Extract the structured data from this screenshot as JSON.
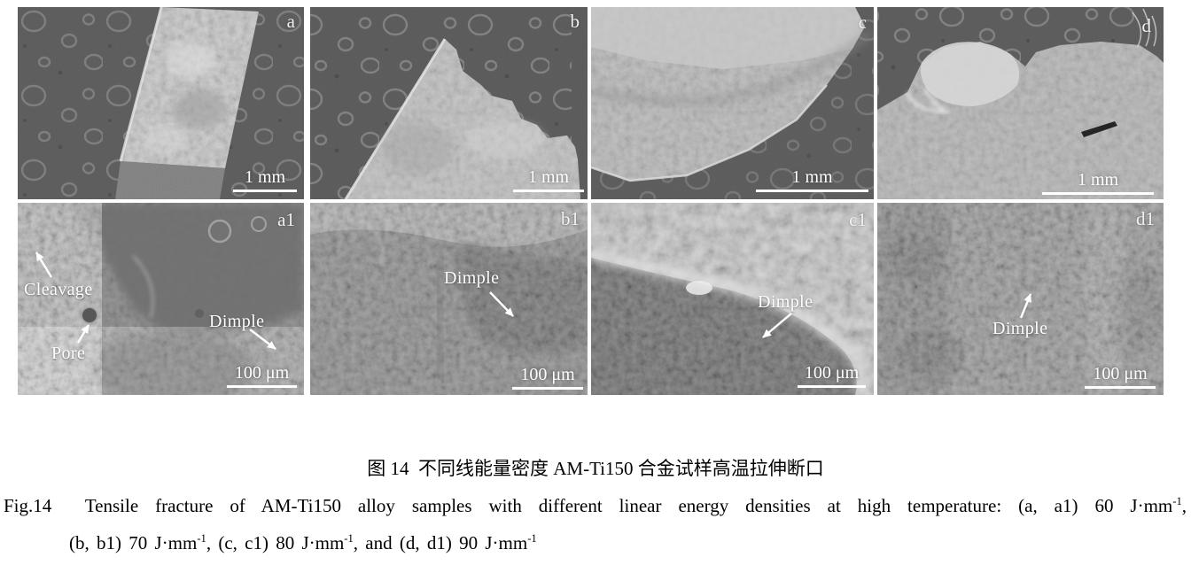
{
  "figure": {
    "panels": [
      {
        "id": "a",
        "label": "a",
        "scale_text": "1 mm"
      },
      {
        "id": "b",
        "label": "b",
        "scale_text": "1 mm"
      },
      {
        "id": "c",
        "label": "c",
        "scale_text": "1 mm"
      },
      {
        "id": "d",
        "label": "d",
        "scale_text": "1 mm"
      },
      {
        "id": "a1",
        "label": "a1",
        "scale_text": "100 μm",
        "annotations": [
          {
            "text": "Cleavage"
          },
          {
            "text": "Pore"
          },
          {
            "text": "Dimple"
          }
        ]
      },
      {
        "id": "b1",
        "label": "b1",
        "scale_text": "100 μm",
        "annotations": [
          {
            "text": "Dimple"
          }
        ]
      },
      {
        "id": "c1",
        "label": "c1",
        "scale_text": "100 μm",
        "annotations": [
          {
            "text": "Dimple"
          }
        ]
      },
      {
        "id": "d1",
        "label": "d1",
        "scale_text": "100 μm",
        "annotations": [
          {
            "text": "Dimple"
          }
        ]
      }
    ]
  },
  "caption": {
    "zh": "图 14  不同线能量密度 AM-Ti150 合金试样高温拉伸断口",
    "en_line1": [
      {
        "t": "Fig.14  Tensile fracture of AM-Ti150 alloy samples with different linear energy densities at high temperature: (a, a1) 60 J·mm"
      },
      {
        "t": "-1",
        "sup": true
      },
      {
        "t": ","
      }
    ],
    "en_line2": [
      {
        "t": "(b, b1) 70 J·mm"
      },
      {
        "t": "-1",
        "sup": true
      },
      {
        "t": ", (c, c1) 80 J·mm"
      },
      {
        "t": "-1",
        "sup": true
      },
      {
        "t": ", and (d, d1) 90 J·mm"
      },
      {
        "t": "-1",
        "sup": true
      }
    ]
  },
  "colors": {
    "page_bg": "#ffffff",
    "sem_background_dark": "#4e4e4e",
    "specimen_gray": "#bcbcbc",
    "panel_label_text": "#f2f2f2",
    "scalebar": "#ffffff",
    "annotation_text": "#ffffff",
    "caption_text": "#000000"
  }
}
